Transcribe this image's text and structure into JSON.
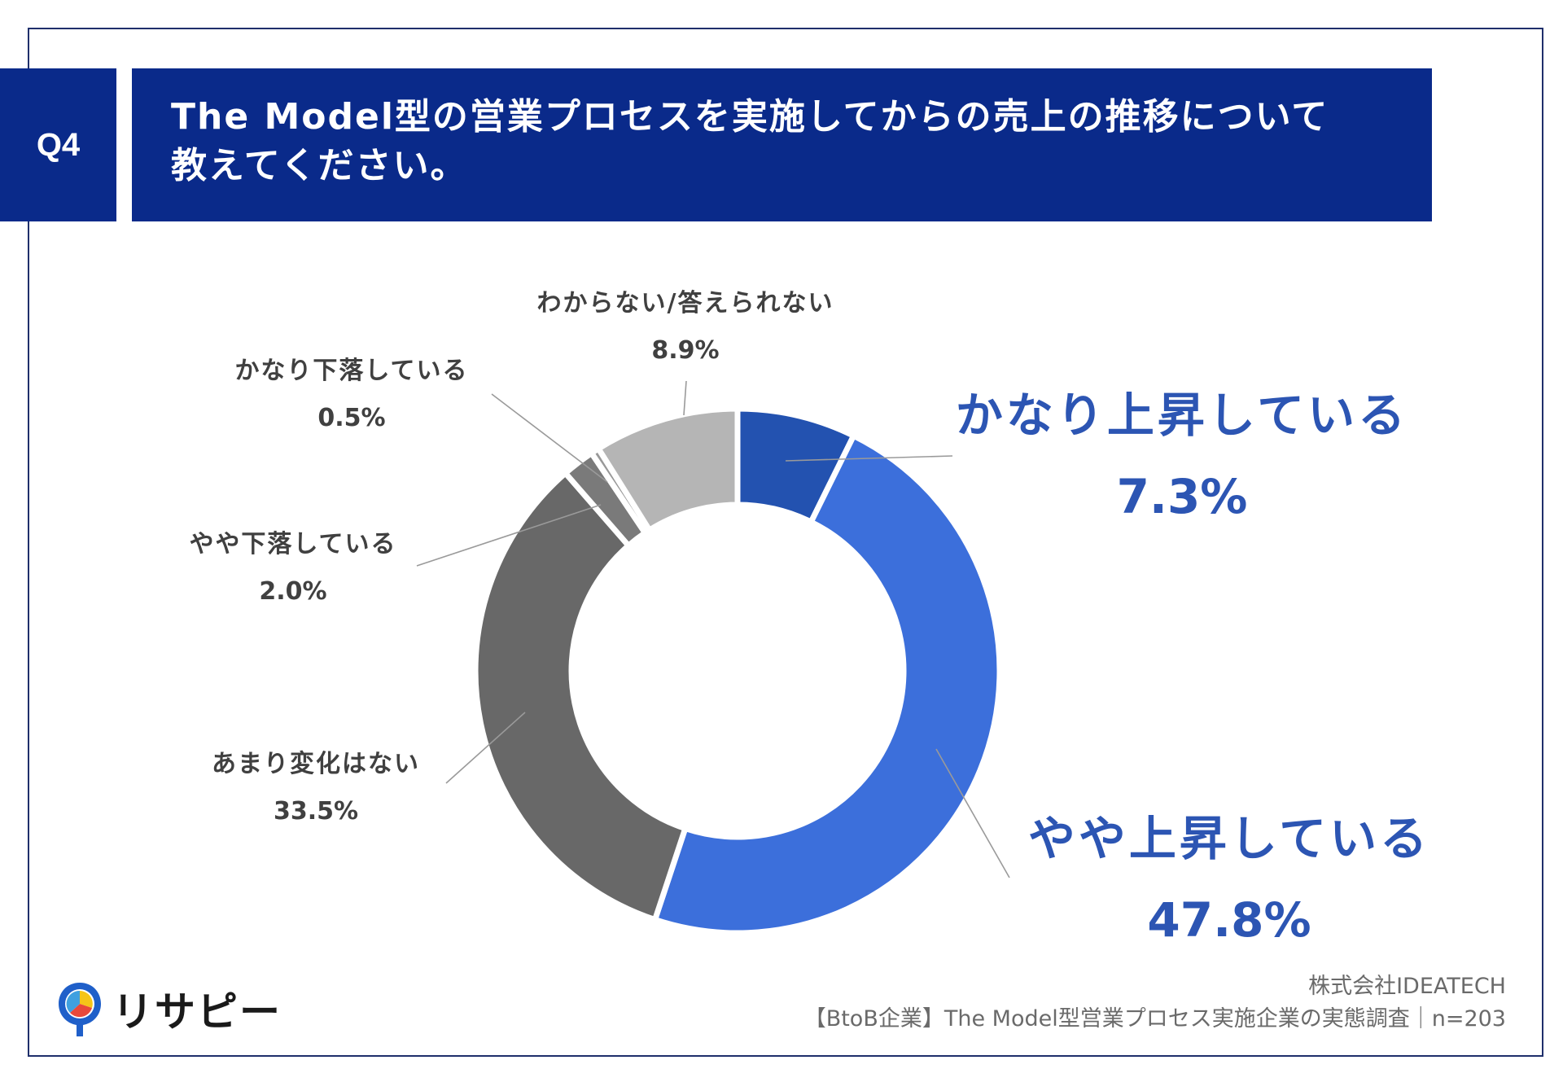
{
  "header": {
    "question_number": "Q4",
    "title_line1": "The Model型の営業プロセスを実施してからの売上の推移について",
    "title_line2": "教えてください。"
  },
  "chart_data": {
    "type": "pie",
    "variant": "donut",
    "title": "",
    "start_angle_deg": 0,
    "direction": "clockwise",
    "slices": [
      {
        "label": "かなり上昇している",
        "value": 7.3,
        "display": "7.3%",
        "color": "#2352b0"
      },
      {
        "label": "やや上昇している",
        "value": 47.8,
        "display": "47.8%",
        "color": "#3c6fdb"
      },
      {
        "label": "あまり変化はない",
        "value": 33.5,
        "display": "33.5%",
        "color": "#686868"
      },
      {
        "label": "やや下落している",
        "value": 2.0,
        "display": "2.0%",
        "color": "#7a7a7a"
      },
      {
        "label": "かなり下落している",
        "value": 0.5,
        "display": "0.5%",
        "color": "#999999"
      },
      {
        "label": "わからない/答えられない",
        "value": 8.9,
        "display": "8.9%",
        "color": "#b5b5b5"
      }
    ],
    "highlight_color": "#2c55b3",
    "label_color": "#404040",
    "leader_color": "#9a9a9a"
  },
  "footer": {
    "logo_text": "リサピー",
    "company": "株式会社IDEATECH",
    "survey": "【BtoB企業】The Model型営業プロセス実施企業の実態調査｜n=203"
  }
}
